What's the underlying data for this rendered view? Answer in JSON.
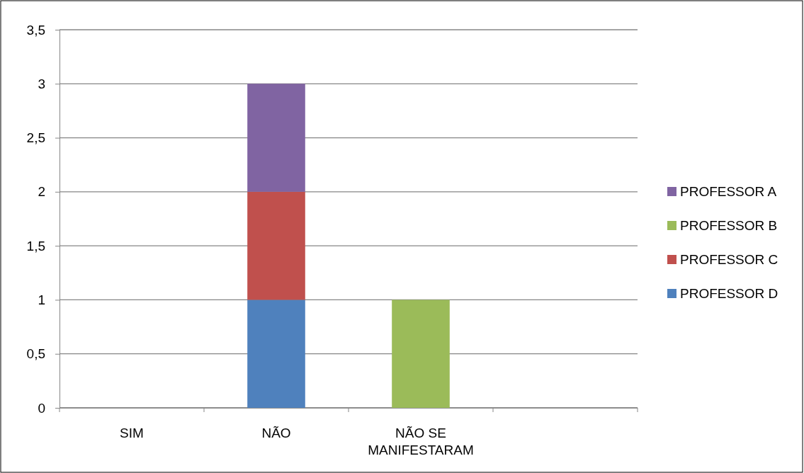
{
  "chart_data": {
    "type": "bar",
    "stacked": true,
    "categories": [
      "SIM",
      "NÃO",
      "NÃO SE MANIFESTARAM",
      null
    ],
    "series": [
      {
        "name": "PROFESSOR D",
        "color": "#4f81bd",
        "values": [
          0,
          1,
          0,
          0
        ]
      },
      {
        "name": "PROFESSOR C",
        "color": "#c0504d",
        "values": [
          0,
          1,
          0,
          0
        ]
      },
      {
        "name": "PROFESSOR B",
        "color": "#9bbb59",
        "values": [
          0,
          0,
          1,
          0
        ]
      },
      {
        "name": "PROFESSOR A",
        "color": "#8064a2",
        "values": [
          0,
          1,
          0,
          0
        ]
      }
    ],
    "ylim": [
      0,
      3.5
    ],
    "yticks": [
      0,
      {
        "value": 0.5,
        "label": "0,5"
      },
      1,
      {
        "value": 1.5,
        "label": "1,5"
      },
      2,
      {
        "value": 2.5,
        "label": "2,5"
      },
      3,
      {
        "value": 3.5,
        "label": "3,5"
      }
    ],
    "grid": "y",
    "legend": "right"
  }
}
